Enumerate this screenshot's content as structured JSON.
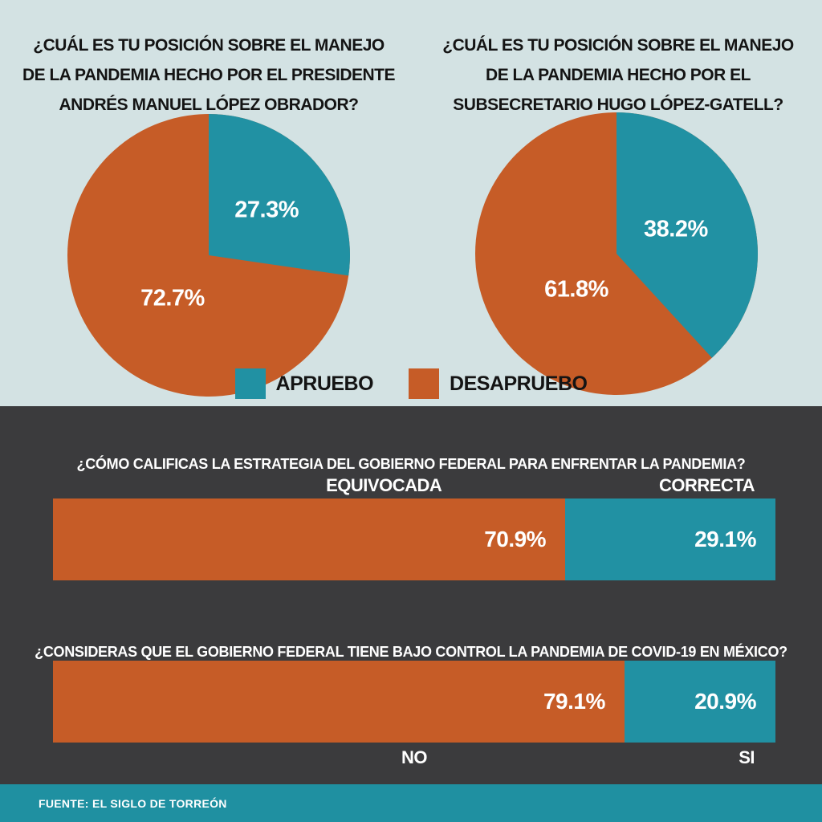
{
  "colors": {
    "teal": "#2191a3",
    "orange": "#c65c27",
    "light_bg": "#d3e2e3",
    "dark_bg": "#3b3b3d",
    "footer_bg": "#1f90a1",
    "title_text": "#141414",
    "label_text": "#ffffff"
  },
  "legend": {
    "items": [
      {
        "label": "APRUEBO",
        "color": "#2191a3"
      },
      {
        "label": "DESAPRUEBO",
        "color": "#c65c27"
      }
    ]
  },
  "chart_data": [
    {
      "type": "pie",
      "title": "¿CUÁL ES TU POSICIÓN SOBRE EL MANEJO\nDE LA PANDEMIA HECHO POR EL PRESIDENTE\nANDRÉS MANUEL LÓPEZ OBRADOR?",
      "labels": [
        "APRUEBO",
        "DESAPRUEBO"
      ],
      "values": [
        27.3,
        72.7
      ],
      "value_labels": [
        "27.3%",
        "72.7%"
      ],
      "slice_colors": [
        "#2191a3",
        "#c65c27"
      ],
      "start_angle_deg": 0,
      "direction": "clockwise",
      "legend_position": "bottom-center"
    },
    {
      "type": "pie",
      "title": "¿CUÁL ES TU POSICIÓN SOBRE EL MANEJO\nDE LA PANDEMIA HECHO POR EL\nSUBSECRETARIO HUGO LÓPEZ-GATELL?",
      "labels": [
        "APRUEBO",
        "DESAPRUEBO"
      ],
      "values": [
        38.2,
        61.8
      ],
      "value_labels": [
        "38.2%",
        "61.8%"
      ],
      "slice_colors": [
        "#2191a3",
        "#c65c27"
      ],
      "start_angle_deg": 0,
      "direction": "clockwise",
      "legend_position": "bottom-center"
    },
    {
      "type": "bar",
      "variant": "horizontal-stacked-100",
      "title": "¿CÓMO CALIFICAS LA ESTRATEGIA DEL GOBIERNO FEDERAL PARA ENFRENTAR LA PANDEMIA?",
      "categories": [
        "EQUIVOCADA",
        "CORRECTA"
      ],
      "values": [
        70.9,
        29.1
      ],
      "value_labels": [
        "70.9%",
        "29.1%"
      ],
      "bar_colors": [
        "#c65c27",
        "#2191a3"
      ],
      "category_labels_position": "above",
      "xlim": [
        0,
        100
      ]
    },
    {
      "type": "bar",
      "variant": "horizontal-stacked-100",
      "title": "¿CONSIDERAS QUE EL GOBIERNO FEDERAL TIENE BAJO CONTROL LA PANDEMIA DE COVID-19 EN MÉXICO?",
      "categories": [
        "NO",
        "SI"
      ],
      "values": [
        79.1,
        20.9
      ],
      "value_labels": [
        "79.1%",
        "20.9%"
      ],
      "bar_colors": [
        "#c65c27",
        "#2191a3"
      ],
      "category_labels_position": "below",
      "xlim": [
        0,
        100
      ]
    }
  ],
  "footer": {
    "source": "FUENTE: EL SIGLO DE TORREÓN"
  }
}
